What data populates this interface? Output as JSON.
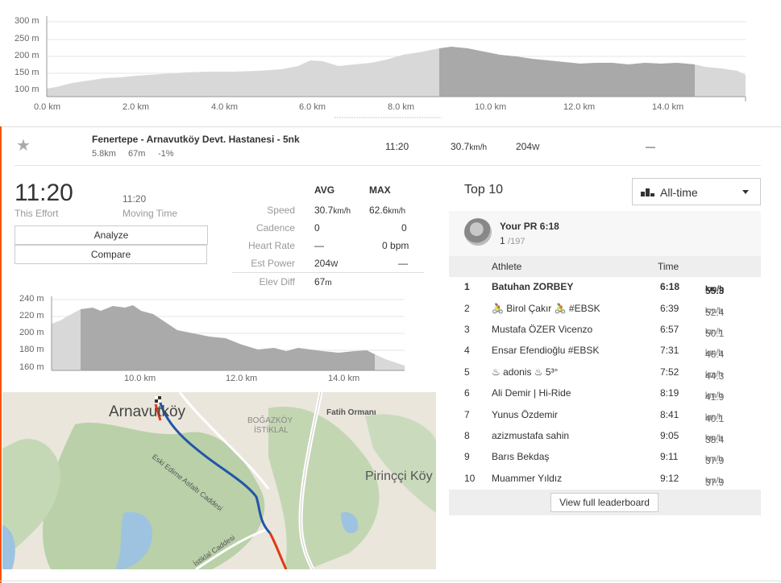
{
  "top_chart": {
    "y_ticks": [
      "300 m",
      "250 m",
      "200 m",
      "150 m",
      "100 m"
    ],
    "x_ticks": [
      "0.0 km",
      "2.0 km",
      "4.0 km",
      "6.0 km",
      "8.0 km",
      "10.0 km",
      "12.0 km",
      "14.0 km"
    ]
  },
  "segment": {
    "name": "Fenertepe - Arnavutköy Devt. Hastanesi - 5nk",
    "distance": "5.8km",
    "elev": "67m",
    "grade": "-1%",
    "time": "11:20",
    "speed_val": "30.7",
    "speed_unit": "km/h",
    "power_val": "204",
    "power_unit": "W",
    "extra": "—"
  },
  "effort": {
    "this_effort_time": "11:20",
    "this_effort_label": "This Effort",
    "moving_time": "11:20",
    "moving_time_label": "Moving Time",
    "analyze_label": "Analyze",
    "compare_label": "Compare"
  },
  "stats": {
    "avg_header": "AVG",
    "max_header": "MAX",
    "rows": [
      {
        "label": "Speed",
        "avg": "30.7",
        "avg_unit": "km/h",
        "max": "62.6",
        "max_unit": "km/h"
      },
      {
        "label": "Cadence",
        "avg": "0",
        "avg_unit": "",
        "max": "0",
        "max_unit": ""
      },
      {
        "label": "Heart Rate",
        "avg": "—",
        "avg_unit": "",
        "max": "0",
        "max_unit": " bpm"
      },
      {
        "label": "Est Power",
        "avg": "204",
        "avg_unit": "W",
        "max": "—",
        "max_unit": ""
      },
      {
        "label": "Elev Diff",
        "avg": "67",
        "avg_unit": "m",
        "max": "",
        "max_unit": ""
      }
    ]
  },
  "small_chart": {
    "y_ticks": [
      "240 m",
      "220 m",
      "200 m",
      "180 m",
      "160 m"
    ],
    "x_ticks": [
      "10.0 km",
      "12.0 km",
      "14.0 km"
    ]
  },
  "map": {
    "labels": {
      "arnavutkoy": "Arnavutköy",
      "bogazkoy": "BOĞAZKÖY",
      "istiklal": "İSTİKLAL",
      "fatih": "Fatih Ormanı",
      "pirincci": "Pirinççi Köy",
      "road1": "Eski Edirne Asfaltı Caddesi",
      "road2": "İstiklal Caddesi"
    }
  },
  "leaderboard": {
    "title": "Top 10",
    "filter_label": "All-time",
    "pr_label": "Your PR 6:18",
    "pr_rank": "1",
    "pr_total": "/197",
    "col_athlete": "Athlete",
    "col_time": "Time",
    "rows": [
      {
        "rank": "1",
        "athlete": "Batuhan ZORBEY",
        "time": "6:18",
        "speed": "55.3",
        "unit": "km/h"
      },
      {
        "rank": "2",
        "athlete": "🚴 Birol Çakır 🚴 #EBSK",
        "time": "6:39",
        "speed": "52.4",
        "unit": "km/h"
      },
      {
        "rank": "3",
        "athlete": "Mustafa ÖZER Vicenzo",
        "time": "6:57",
        "speed": "50.1",
        "unit": "km/h"
      },
      {
        "rank": "4",
        "athlete": "Ensar Efendioğlu #EBSK",
        "time": "7:31",
        "speed": "46.4",
        "unit": "km/h"
      },
      {
        "rank": "5",
        "athlete": "♨ adonis ♨ 5³°",
        "time": "7:52",
        "speed": "44.3",
        "unit": "km/h"
      },
      {
        "rank": "6",
        "athlete": "Ali Demir | Hi-Ride",
        "time": "8:19",
        "speed": "41.9",
        "unit": "km/h"
      },
      {
        "rank": "7",
        "athlete": "Yunus Özdemir",
        "time": "8:41",
        "speed": "40.1",
        "unit": "km/h"
      },
      {
        "rank": "8",
        "athlete": "azizmustafa sahin",
        "time": "9:05",
        "speed": "38.4",
        "unit": "km/h"
      },
      {
        "rank": "9",
        "athlete": "Barıs Bekdaş",
        "time": "9:11",
        "speed": "37.9",
        "unit": "km/h"
      },
      {
        "rank": "10",
        "athlete": "Muammer Yıldız",
        "time": "9:12",
        "speed": "37.9",
        "unit": "km/h"
      }
    ],
    "view_full_label": "View full leaderboard"
  }
}
